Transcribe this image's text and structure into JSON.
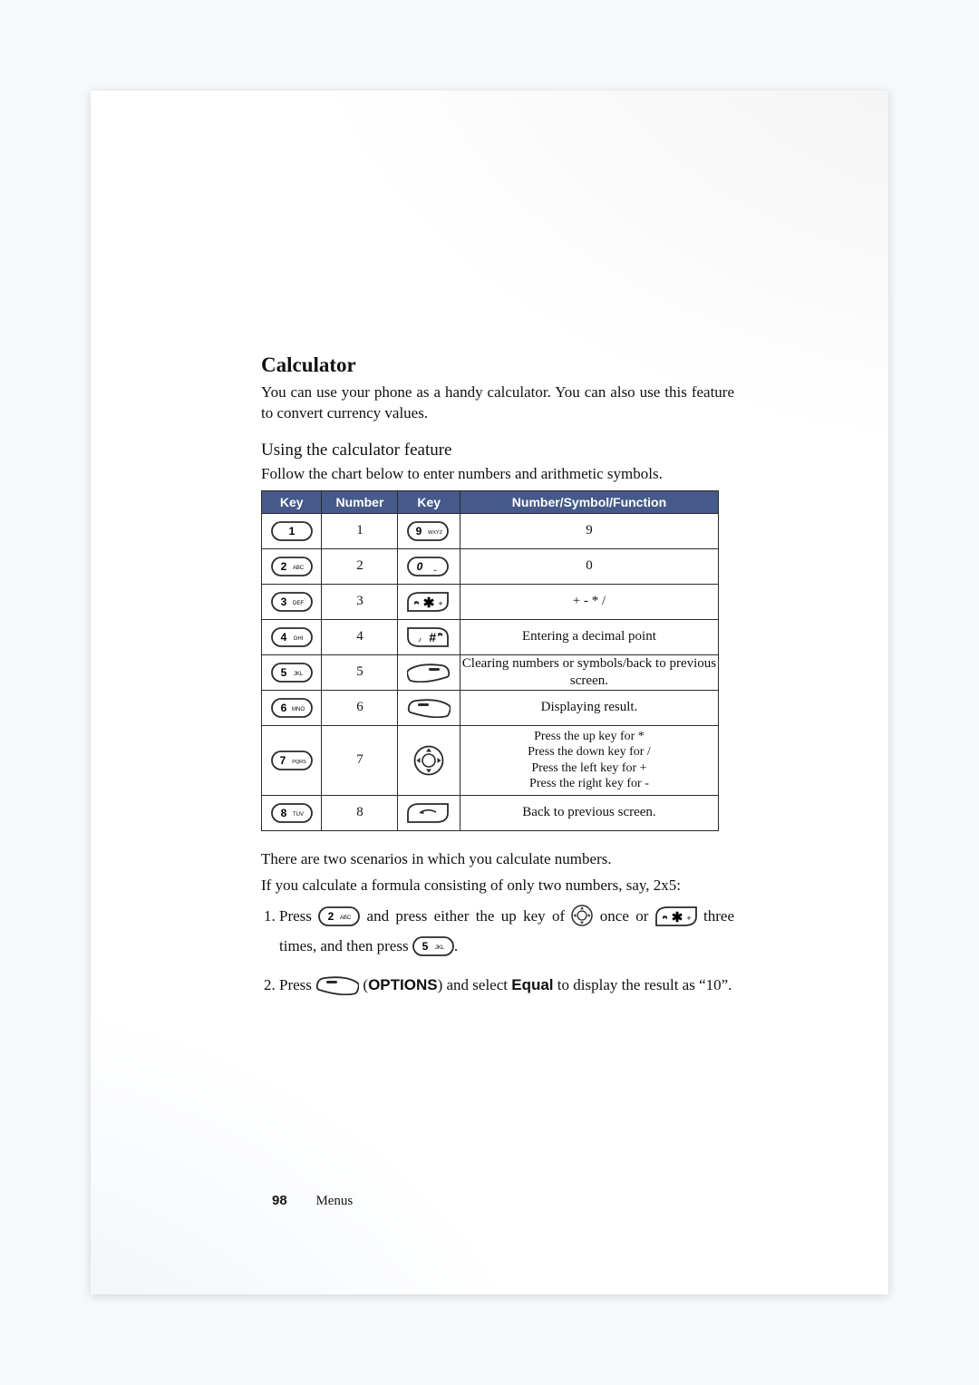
{
  "page": {
    "number": "98",
    "footer_label": "Menus",
    "background_color": "#f6f8fa",
    "paper_color": "#ffffff"
  },
  "heading": {
    "title": "Calculator",
    "intro": "You can use your phone as a handy calculator. You can also use this feature to convert currency values.",
    "subhead": "Using the calculator feature",
    "follow": "Follow the chart below to enter numbers and arithmetic symbols."
  },
  "table": {
    "header_bg": "#455a8a",
    "header_fg": "#ffffff",
    "border_color": "#2a2a2a",
    "columns": [
      "Key",
      "Number",
      "Key",
      "Number/Symbol/Function"
    ],
    "rows": [
      {
        "left_key": "key-1",
        "number": "1",
        "right_key": "key-9",
        "func": "9"
      },
      {
        "left_key": "key-2",
        "number": "2",
        "right_key": "key-0",
        "func": "0"
      },
      {
        "left_key": "key-3",
        "number": "3",
        "right_key": "key-star",
        "func": "+  -  *  /"
      },
      {
        "left_key": "key-4",
        "number": "4",
        "right_key": "key-hash",
        "func": "Entering a decimal point"
      },
      {
        "left_key": "key-5",
        "number": "5",
        "right_key": "key-softright",
        "func": "Clearing numbers or symbols/back to previous screen."
      },
      {
        "left_key": "key-6",
        "number": "6",
        "right_key": "key-softleft",
        "func": "Displaying result."
      },
      {
        "left_key": "key-7",
        "number": "7",
        "right_key": "key-nav",
        "func": "Press the up key for *\nPress the down key for /\nPress the left key for +\nPress the right key for -",
        "tall": true
      },
      {
        "left_key": "key-8",
        "number": "8",
        "right_key": "key-back",
        "func": "Back to previous screen."
      }
    ]
  },
  "scenarios": {
    "intro": "There are two scenarios in which you calculate numbers.",
    "ifline": "If you calculate a formula consisting of only two numbers, say, 2x5:",
    "step1": {
      "a": "Press ",
      "b": " and press either the up key of ",
      "c": " once or ",
      "d": " three times, and then press ",
      "e": "."
    },
    "step2": {
      "a": "Press ",
      "options_label": "OPTIONS",
      "b": ") and select ",
      "equal_label": "Equal",
      "c": " to display the result as “10”."
    }
  },
  "icons": {
    "key_stroke": "#2a2a2a",
    "key_fill": "#ffffff",
    "label_font": "Arial"
  }
}
